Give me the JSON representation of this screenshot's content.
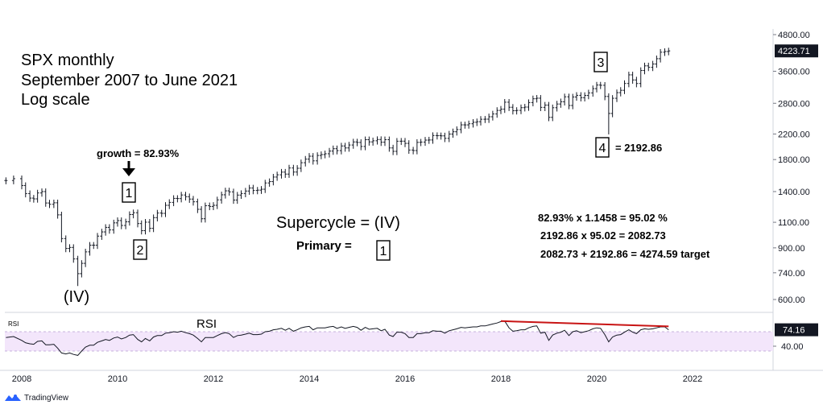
{
  "chart_data": {
    "type": "candlestick",
    "instrument": "SPX",
    "title_lines": [
      "SPX monthly",
      "September 2007 to June 2021",
      "Log scale"
    ],
    "y_scale": "log",
    "y_ticks": [
      "4800.00",
      "3600.00",
      "2800.00",
      "2200.00",
      "1800.00",
      "1400.00",
      "1100.00",
      "900.00",
      "740.00",
      "600.00"
    ],
    "last_price": "4223.71",
    "last_price_value": 4223.71,
    "x_ticks": [
      "2008",
      "2010",
      "2012",
      "2014",
      "2016",
      "2018",
      "2020",
      "2022"
    ],
    "price_series": {
      "name": "SPX",
      "points": [
        [
          2007.67,
          1527
        ],
        [
          2007.83,
          1549
        ],
        [
          2008.0,
          1468
        ],
        [
          2008.08,
          1378
        ],
        [
          2008.17,
          1330
        ],
        [
          2008.25,
          1322
        ],
        [
          2008.33,
          1385
        ],
        [
          2008.42,
          1400
        ],
        [
          2008.5,
          1280
        ],
        [
          2008.58,
          1267
        ],
        [
          2008.67,
          1282
        ],
        [
          2008.75,
          1166
        ],
        [
          2008.83,
          968
        ],
        [
          2008.92,
          896
        ],
        [
          2009.0,
          903
        ],
        [
          2009.08,
          825
        ],
        [
          2009.17,
          735
        ],
        [
          2009.25,
          797
        ],
        [
          2009.33,
          872
        ],
        [
          2009.42,
          919
        ],
        [
          2009.5,
          919
        ],
        [
          2009.58,
          987
        ],
        [
          2009.67,
          1020
        ],
        [
          2009.75,
          1057
        ],
        [
          2009.83,
          1036
        ],
        [
          2009.92,
          1095
        ],
        [
          2010.0,
          1115
        ],
        [
          2010.08,
          1073
        ],
        [
          2010.17,
          1104
        ],
        [
          2010.25,
          1169
        ],
        [
          2010.33,
          1186
        ],
        [
          2010.42,
          1089
        ],
        [
          2010.5,
          1030
        ],
        [
          2010.58,
          1101
        ],
        [
          2010.67,
          1049
        ],
        [
          2010.75,
          1141
        ],
        [
          2010.83,
          1183
        ],
        [
          2010.92,
          1180
        ],
        [
          2011.0,
          1257
        ],
        [
          2011.08,
          1286
        ],
        [
          2011.17,
          1327
        ],
        [
          2011.25,
          1325
        ],
        [
          2011.33,
          1363
        ],
        [
          2011.42,
          1345
        ],
        [
          2011.5,
          1320
        ],
        [
          2011.58,
          1292
        ],
        [
          2011.67,
          1218
        ],
        [
          2011.75,
          1131
        ],
        [
          2011.83,
          1253
        ],
        [
          2011.92,
          1246
        ],
        [
          2012.0,
          1257
        ],
        [
          2012.08,
          1312
        ],
        [
          2012.17,
          1365
        ],
        [
          2012.25,
          1408
        ],
        [
          2012.33,
          1397
        ],
        [
          2012.42,
          1310
        ],
        [
          2012.5,
          1362
        ],
        [
          2012.58,
          1379
        ],
        [
          2012.67,
          1406
        ],
        [
          2012.75,
          1440
        ],
        [
          2012.83,
          1412
        ],
        [
          2012.92,
          1416
        ],
        [
          2013.0,
          1426
        ],
        [
          2013.08,
          1498
        ],
        [
          2013.17,
          1514
        ],
        [
          2013.25,
          1569
        ],
        [
          2013.33,
          1597
        ],
        [
          2013.42,
          1631
        ],
        [
          2013.5,
          1606
        ],
        [
          2013.58,
          1685
        ],
        [
          2013.67,
          1632
        ],
        [
          2013.75,
          1681
        ],
        [
          2013.83,
          1756
        ],
        [
          2013.92,
          1806
        ],
        [
          2014.0,
          1848
        ],
        [
          2014.08,
          1782
        ],
        [
          2014.17,
          1859
        ],
        [
          2014.25,
          1872
        ],
        [
          2014.33,
          1884
        ],
        [
          2014.42,
          1924
        ],
        [
          2014.5,
          1960
        ],
        [
          2014.58,
          1931
        ],
        [
          2014.67,
          2003
        ],
        [
          2014.75,
          1972
        ],
        [
          2014.83,
          2018
        ],
        [
          2014.92,
          2067
        ],
        [
          2015.0,
          2059
        ],
        [
          2015.08,
          1995
        ],
        [
          2015.17,
          2104
        ],
        [
          2015.25,
          2068
        ],
        [
          2015.33,
          2086
        ],
        [
          2015.42,
          2107
        ],
        [
          2015.5,
          2063
        ],
        [
          2015.58,
          2104
        ],
        [
          2015.67,
          1972
        ],
        [
          2015.75,
          1920
        ],
        [
          2015.83,
          2079
        ],
        [
          2015.92,
          2080
        ],
        [
          2016.0,
          2044
        ],
        [
          2016.08,
          1940
        ],
        [
          2016.17,
          1932
        ],
        [
          2016.25,
          2060
        ],
        [
          2016.33,
          2065
        ],
        [
          2016.42,
          2097
        ],
        [
          2016.5,
          2099
        ],
        [
          2016.58,
          2174
        ],
        [
          2016.67,
          2171
        ],
        [
          2016.75,
          2168
        ],
        [
          2016.83,
          2126
        ],
        [
          2016.92,
          2199
        ],
        [
          2017.0,
          2239
        ],
        [
          2017.08,
          2279
        ],
        [
          2017.17,
          2364
        ],
        [
          2017.25,
          2363
        ],
        [
          2017.33,
          2384
        ],
        [
          2017.42,
          2412
        ],
        [
          2017.5,
          2423
        ],
        [
          2017.58,
          2470
        ],
        [
          2017.67,
          2472
        ],
        [
          2017.75,
          2519
        ],
        [
          2017.83,
          2575
        ],
        [
          2017.92,
          2648
        ],
        [
          2018.0,
          2674
        ],
        [
          2018.08,
          2824
        ],
        [
          2018.17,
          2714
        ],
        [
          2018.25,
          2641
        ],
        [
          2018.33,
          2648
        ],
        [
          2018.42,
          2705
        ],
        [
          2018.5,
          2718
        ],
        [
          2018.58,
          2816
        ],
        [
          2018.67,
          2901
        ],
        [
          2018.75,
          2914
        ],
        [
          2018.83,
          2712
        ],
        [
          2018.92,
          2760
        ],
        [
          2019.0,
          2507
        ],
        [
          2019.08,
          2704
        ],
        [
          2019.17,
          2784
        ],
        [
          2019.25,
          2834
        ],
        [
          2019.33,
          2946
        ],
        [
          2019.42,
          2752
        ],
        [
          2019.5,
          2942
        ],
        [
          2019.58,
          2980
        ],
        [
          2019.67,
          2926
        ],
        [
          2019.75,
          2977
        ],
        [
          2019.83,
          3038
        ],
        [
          2019.92,
          3141
        ],
        [
          2020.0,
          3231
        ],
        [
          2020.08,
          3225
        ],
        [
          2020.17,
          2954
        ],
        [
          2020.25,
          2585
        ],
        [
          2020.33,
          2912
        ],
        [
          2020.42,
          3044
        ],
        [
          2020.5,
          3100
        ],
        [
          2020.58,
          3271
        ],
        [
          2020.67,
          3500
        ],
        [
          2020.75,
          3363
        ],
        [
          2020.83,
          3270
        ],
        [
          2020.92,
          3622
        ],
        [
          2021.0,
          3756
        ],
        [
          2021.08,
          3714
        ],
        [
          2021.17,
          3811
        ],
        [
          2021.25,
          3973
        ],
        [
          2021.33,
          4181
        ],
        [
          2021.42,
          4204
        ],
        [
          2021.5,
          4224
        ]
      ],
      "lows": [
        [
          2009.17,
          667
        ],
        [
          2020.25,
          2192.86
        ]
      ]
    },
    "rsi": {
      "name": "RSI",
      "tick_label": "40.00",
      "tick_value": 40,
      "last_value_label": "74.16",
      "band_upper": 70,
      "band_lower": 30,
      "points": [
        [
          2007.67,
          58
        ],
        [
          2007.83,
          60
        ],
        [
          2008.0,
          52
        ],
        [
          2008.08,
          47
        ],
        [
          2008.17,
          45
        ],
        [
          2008.25,
          44
        ],
        [
          2008.33,
          50
        ],
        [
          2008.42,
          51
        ],
        [
          2008.5,
          43
        ],
        [
          2008.58,
          43
        ],
        [
          2008.67,
          44
        ],
        [
          2008.75,
          36
        ],
        [
          2008.83,
          26
        ],
        [
          2008.92,
          24
        ],
        [
          2009.0,
          26
        ],
        [
          2009.08,
          23
        ],
        [
          2009.17,
          21
        ],
        [
          2009.25,
          30
        ],
        [
          2009.33,
          38
        ],
        [
          2009.42,
          42
        ],
        [
          2009.5,
          42
        ],
        [
          2009.58,
          48
        ],
        [
          2009.67,
          51
        ],
        [
          2009.75,
          54
        ],
        [
          2009.83,
          52
        ],
        [
          2009.92,
          57
        ],
        [
          2010.0,
          59
        ],
        [
          2010.08,
          55
        ],
        [
          2010.17,
          58
        ],
        [
          2010.25,
          63
        ],
        [
          2010.33,
          64
        ],
        [
          2010.42,
          54
        ],
        [
          2010.5,
          49
        ],
        [
          2010.58,
          56
        ],
        [
          2010.67,
          51
        ],
        [
          2010.75,
          59
        ],
        [
          2010.83,
          62
        ],
        [
          2010.92,
          62
        ],
        [
          2011.0,
          67
        ],
        [
          2011.08,
          68
        ],
        [
          2011.17,
          70
        ],
        [
          2011.25,
          69
        ],
        [
          2011.33,
          71
        ],
        [
          2011.42,
          68
        ],
        [
          2011.5,
          66
        ],
        [
          2011.58,
          63
        ],
        [
          2011.67,
          56
        ],
        [
          2011.75,
          49
        ],
        [
          2011.83,
          58
        ],
        [
          2011.92,
          58
        ],
        [
          2012.0,
          58
        ],
        [
          2012.08,
          62
        ],
        [
          2012.17,
          66
        ],
        [
          2012.25,
          68
        ],
        [
          2012.33,
          66
        ],
        [
          2012.42,
          58
        ],
        [
          2012.5,
          62
        ],
        [
          2012.58,
          63
        ],
        [
          2012.67,
          65
        ],
        [
          2012.75,
          67
        ],
        [
          2012.83,
          64
        ],
        [
          2012.92,
          64
        ],
        [
          2013.0,
          65
        ],
        [
          2013.08,
          70
        ],
        [
          2013.17,
          71
        ],
        [
          2013.25,
          74
        ],
        [
          2013.33,
          75
        ],
        [
          2013.42,
          77
        ],
        [
          2013.5,
          73
        ],
        [
          2013.58,
          77
        ],
        [
          2013.67,
          71
        ],
        [
          2013.75,
          74
        ],
        [
          2013.83,
          78
        ],
        [
          2013.92,
          80
        ],
        [
          2014.0,
          81
        ],
        [
          2014.08,
          74
        ],
        [
          2014.17,
          78
        ],
        [
          2014.25,
          78
        ],
        [
          2014.33,
          78
        ],
        [
          2014.42,
          80
        ],
        [
          2014.5,
          81
        ],
        [
          2014.58,
          77
        ],
        [
          2014.67,
          80
        ],
        [
          2014.75,
          77
        ],
        [
          2014.83,
          79
        ],
        [
          2014.92,
          81
        ],
        [
          2015.0,
          79
        ],
        [
          2015.08,
          73
        ],
        [
          2015.17,
          79
        ],
        [
          2015.25,
          75
        ],
        [
          2015.33,
          76
        ],
        [
          2015.42,
          77
        ],
        [
          2015.5,
          72
        ],
        [
          2015.58,
          75
        ],
        [
          2015.67,
          63
        ],
        [
          2015.75,
          60
        ],
        [
          2015.83,
          69
        ],
        [
          2015.92,
          69
        ],
        [
          2016.0,
          66
        ],
        [
          2016.08,
          58
        ],
        [
          2016.17,
          58
        ],
        [
          2016.25,
          66
        ],
        [
          2016.33,
          66
        ],
        [
          2016.42,
          68
        ],
        [
          2016.5,
          68
        ],
        [
          2016.58,
          72
        ],
        [
          2016.67,
          71
        ],
        [
          2016.75,
          71
        ],
        [
          2016.83,
          67
        ],
        [
          2016.92,
          72
        ],
        [
          2017.0,
          74
        ],
        [
          2017.08,
          76
        ],
        [
          2017.17,
          79
        ],
        [
          2017.25,
          78
        ],
        [
          2017.33,
          79
        ],
        [
          2017.42,
          80
        ],
        [
          2017.5,
          80
        ],
        [
          2017.58,
          82
        ],
        [
          2017.67,
          82
        ],
        [
          2017.75,
          84
        ],
        [
          2017.83,
          86
        ],
        [
          2017.92,
          88
        ],
        [
          2018.0,
          91
        ],
        [
          2018.08,
          92
        ],
        [
          2018.17,
          78
        ],
        [
          2018.25,
          71
        ],
        [
          2018.33,
          72
        ],
        [
          2018.42,
          74
        ],
        [
          2018.5,
          74
        ],
        [
          2018.58,
          78
        ],
        [
          2018.67,
          81
        ],
        [
          2018.75,
          82
        ],
        [
          2018.83,
          67
        ],
        [
          2018.92,
          69
        ],
        [
          2019.0,
          52
        ],
        [
          2019.08,
          63
        ],
        [
          2019.17,
          67
        ],
        [
          2019.25,
          69
        ],
        [
          2019.33,
          73
        ],
        [
          2019.42,
          62
        ],
        [
          2019.5,
          70
        ],
        [
          2019.58,
          72
        ],
        [
          2019.67,
          68
        ],
        [
          2019.75,
          70
        ],
        [
          2019.83,
          72
        ],
        [
          2019.92,
          76
        ],
        [
          2020.0,
          78
        ],
        [
          2020.08,
          77
        ],
        [
          2020.17,
          64
        ],
        [
          2020.25,
          49
        ],
        [
          2020.33,
          59
        ],
        [
          2020.42,
          63
        ],
        [
          2020.5,
          64
        ],
        [
          2020.58,
          69
        ],
        [
          2020.67,
          74
        ],
        [
          2020.75,
          69
        ],
        [
          2020.83,
          66
        ],
        [
          2020.92,
          74
        ],
        [
          2021.0,
          76
        ],
        [
          2021.08,
          75
        ],
        [
          2021.17,
          76
        ],
        [
          2021.25,
          78
        ],
        [
          2021.33,
          80
        ],
        [
          2021.42,
          80
        ],
        [
          2021.5,
          74
        ]
      ],
      "divergence_line": [
        [
          2018.0,
          92
        ],
        [
          2021.5,
          81
        ]
      ]
    },
    "annotations": {
      "growth_text": "growth = 82.93%",
      "wave_1": "1",
      "wave_2": "2",
      "wave_3": "3",
      "wave_4": "4",
      "wave_4_value": "= 2192.86",
      "wave_iv": "(IV)",
      "supercycle": "Supercycle = (IV)",
      "primary_label": "Primary  =",
      "primary_box": "1",
      "calc_1": "82.93%  x 1.1458 = 95.02 %",
      "calc_2": "2192.86  x 95.02 = 2082.73",
      "calc_3": "2082.73 + 2192.86 = 4274.59 target",
      "rsi_pane_label": "RSI",
      "rsi_small_label": "RSI"
    },
    "colors": {
      "bars": "#131722",
      "divergence": "#c81414",
      "rsi_band": "#f3e6fb",
      "last_price_bg": "#131722",
      "arrow": "#000000"
    }
  },
  "branding": {
    "logo_icon": "tradingview-logo-icon",
    "logo_text": "TradingView"
  }
}
